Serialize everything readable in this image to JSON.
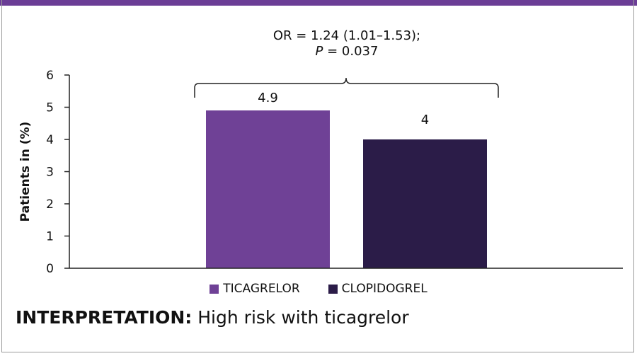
{
  "chart_data": {
    "type": "bar",
    "categories": [
      "TICAGRELOR",
      "CLOPIDOGREL"
    ],
    "values": [
      4.9,
      4
    ],
    "data_labels": [
      "4.9",
      "4"
    ],
    "colors": [
      "#6f4196",
      "#2b1c48"
    ],
    "ylabel": "Patients in (%)",
    "ylim": [
      0,
      6
    ],
    "yticks": [
      "0",
      "1",
      "2",
      "3",
      "4",
      "5",
      "6"
    ],
    "grid": false,
    "legend_position": "bottom",
    "annotation": {
      "line1": "OR = 1.24 (1.01–1.53);",
      "line2_italic": "P",
      "line2_rest": " = 0.037"
    }
  },
  "interpretation": {
    "label": "INTERPRETATION:",
    "text": " High risk with ticagrelor"
  },
  "accent_color": "#6b3d96"
}
